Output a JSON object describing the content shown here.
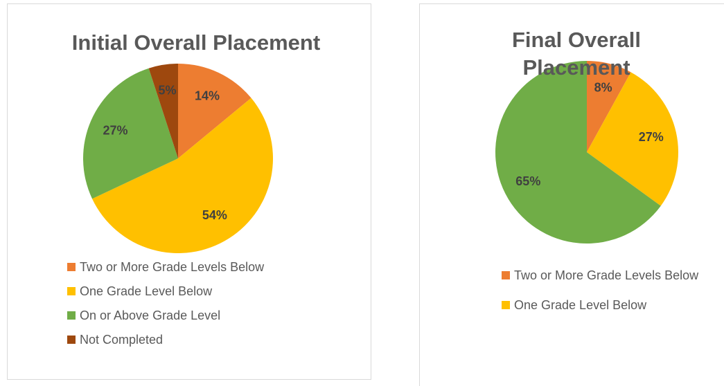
{
  "chart_data": [
    {
      "type": "pie",
      "title": "Initial Overall Placement",
      "categories": [
        "Two or More Grade Levels Below",
        "One Grade Level Below",
        "On or Above Grade Level",
        "Not Completed"
      ],
      "values": [
        14,
        54,
        27,
        5
      ],
      "value_labels": [
        "14%",
        "54%",
        "27%",
        "5%"
      ],
      "colors": [
        "#ed7d31",
        "#ffc000",
        "#70ad47",
        "#9e480e"
      ]
    },
    {
      "type": "pie",
      "title": "Final Overall Placement",
      "categories": [
        "Two or More Grade Levels Below",
        "One Grade Level Below",
        null
      ],
      "values": [
        8,
        27,
        65
      ],
      "value_labels": [
        "8%",
        "27%",
        "65%"
      ],
      "colors": [
        "#ed7d31",
        "#ffc000",
        "#70ad47"
      ]
    }
  ]
}
